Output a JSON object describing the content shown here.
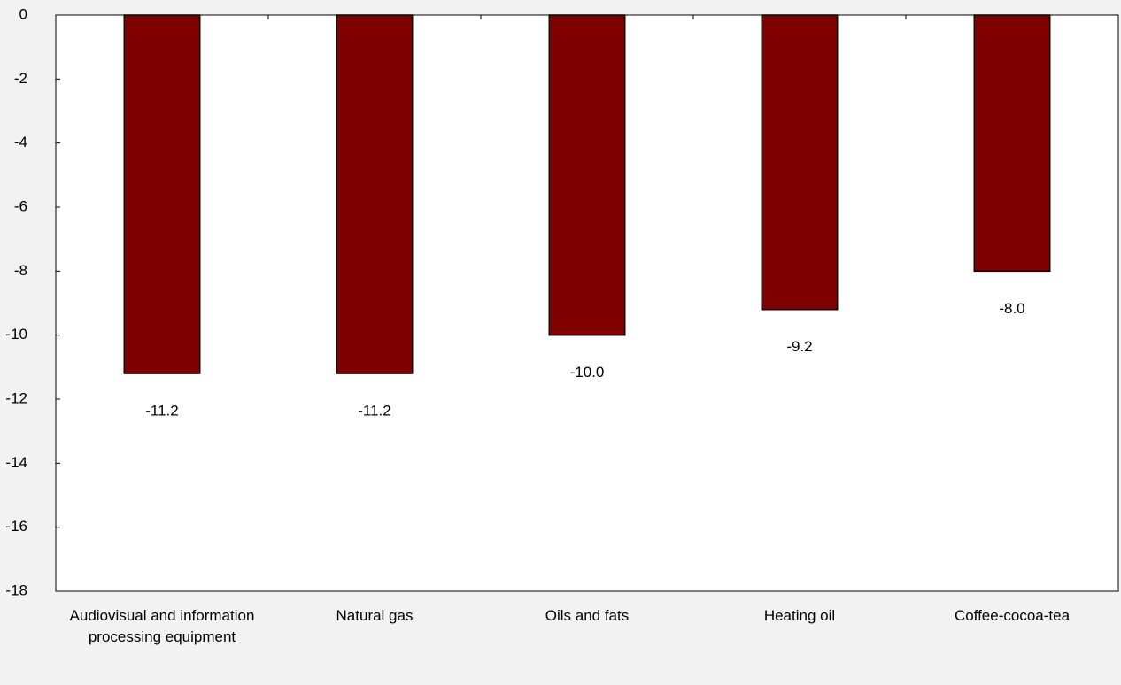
{
  "chart_data": {
    "type": "bar",
    "categories": [
      "Audiovisual and information processing equipment",
      "Natural gas",
      "Oils and fats",
      "Heating oil",
      "Coffee-cocoa-tea"
    ],
    "values": [
      -11.2,
      -11.2,
      -10.0,
      -9.2,
      -8.0
    ],
    "value_labels": [
      "-11.2",
      "-11.2",
      "-10.0",
      "-9.2",
      "-8.0"
    ],
    "color": "#800000",
    "ylim": [
      -18,
      0
    ],
    "yticks": [
      0,
      -2,
      -4,
      -6,
      -8,
      -10,
      -12,
      -14,
      -16,
      -18
    ]
  }
}
